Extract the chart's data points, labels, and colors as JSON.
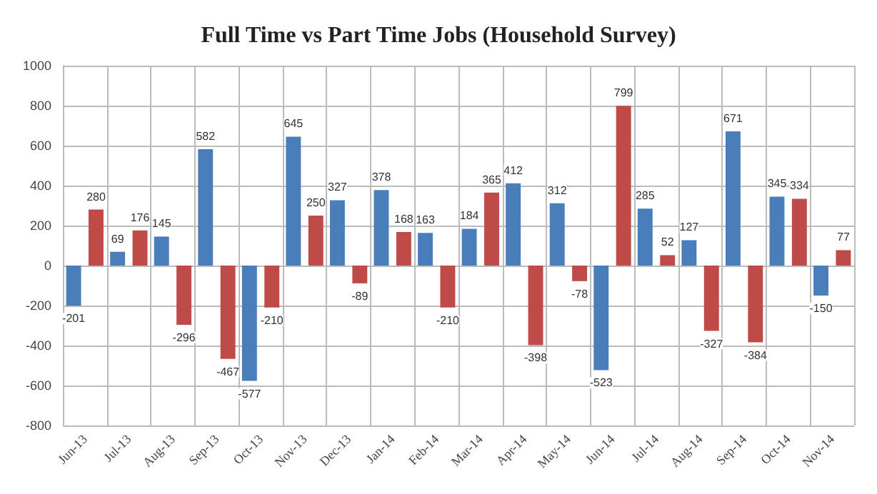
{
  "chart_data": {
    "type": "bar",
    "title": "Full Time vs Part Time Jobs (Household Survey)",
    "categories": [
      "Jun-13",
      "Jul-13",
      "Aug-13",
      "Sep-13",
      "Oct-13",
      "Nov-13",
      "Dec-13",
      "Jan-14",
      "Feb-14",
      "Mar-14",
      "Apr-14",
      "May-14",
      "Jun-14",
      "Jul-14",
      "Aug-14",
      "Sep-14",
      "Oct-14",
      "Nov-14"
    ],
    "series": [
      {
        "color": "#4a7ebb",
        "values": [
          -201,
          69,
          145,
          582,
          -577,
          645,
          327,
          378,
          163,
          184,
          412,
          312,
          -523,
          285,
          127,
          671,
          345,
          -150
        ]
      },
      {
        "color": "#be4b48",
        "values": [
          280,
          176,
          -296,
          -467,
          -210,
          250,
          -89,
          168,
          -210,
          365,
          -398,
          -78,
          799,
          52,
          -327,
          -384,
          334,
          77
        ]
      }
    ],
    "ylim": [
      -800,
      1000
    ],
    "yticks": [
      -800,
      -600,
      -400,
      -200,
      0,
      200,
      400,
      600,
      800,
      1000
    ],
    "grid": true,
    "data_labels": true
  }
}
